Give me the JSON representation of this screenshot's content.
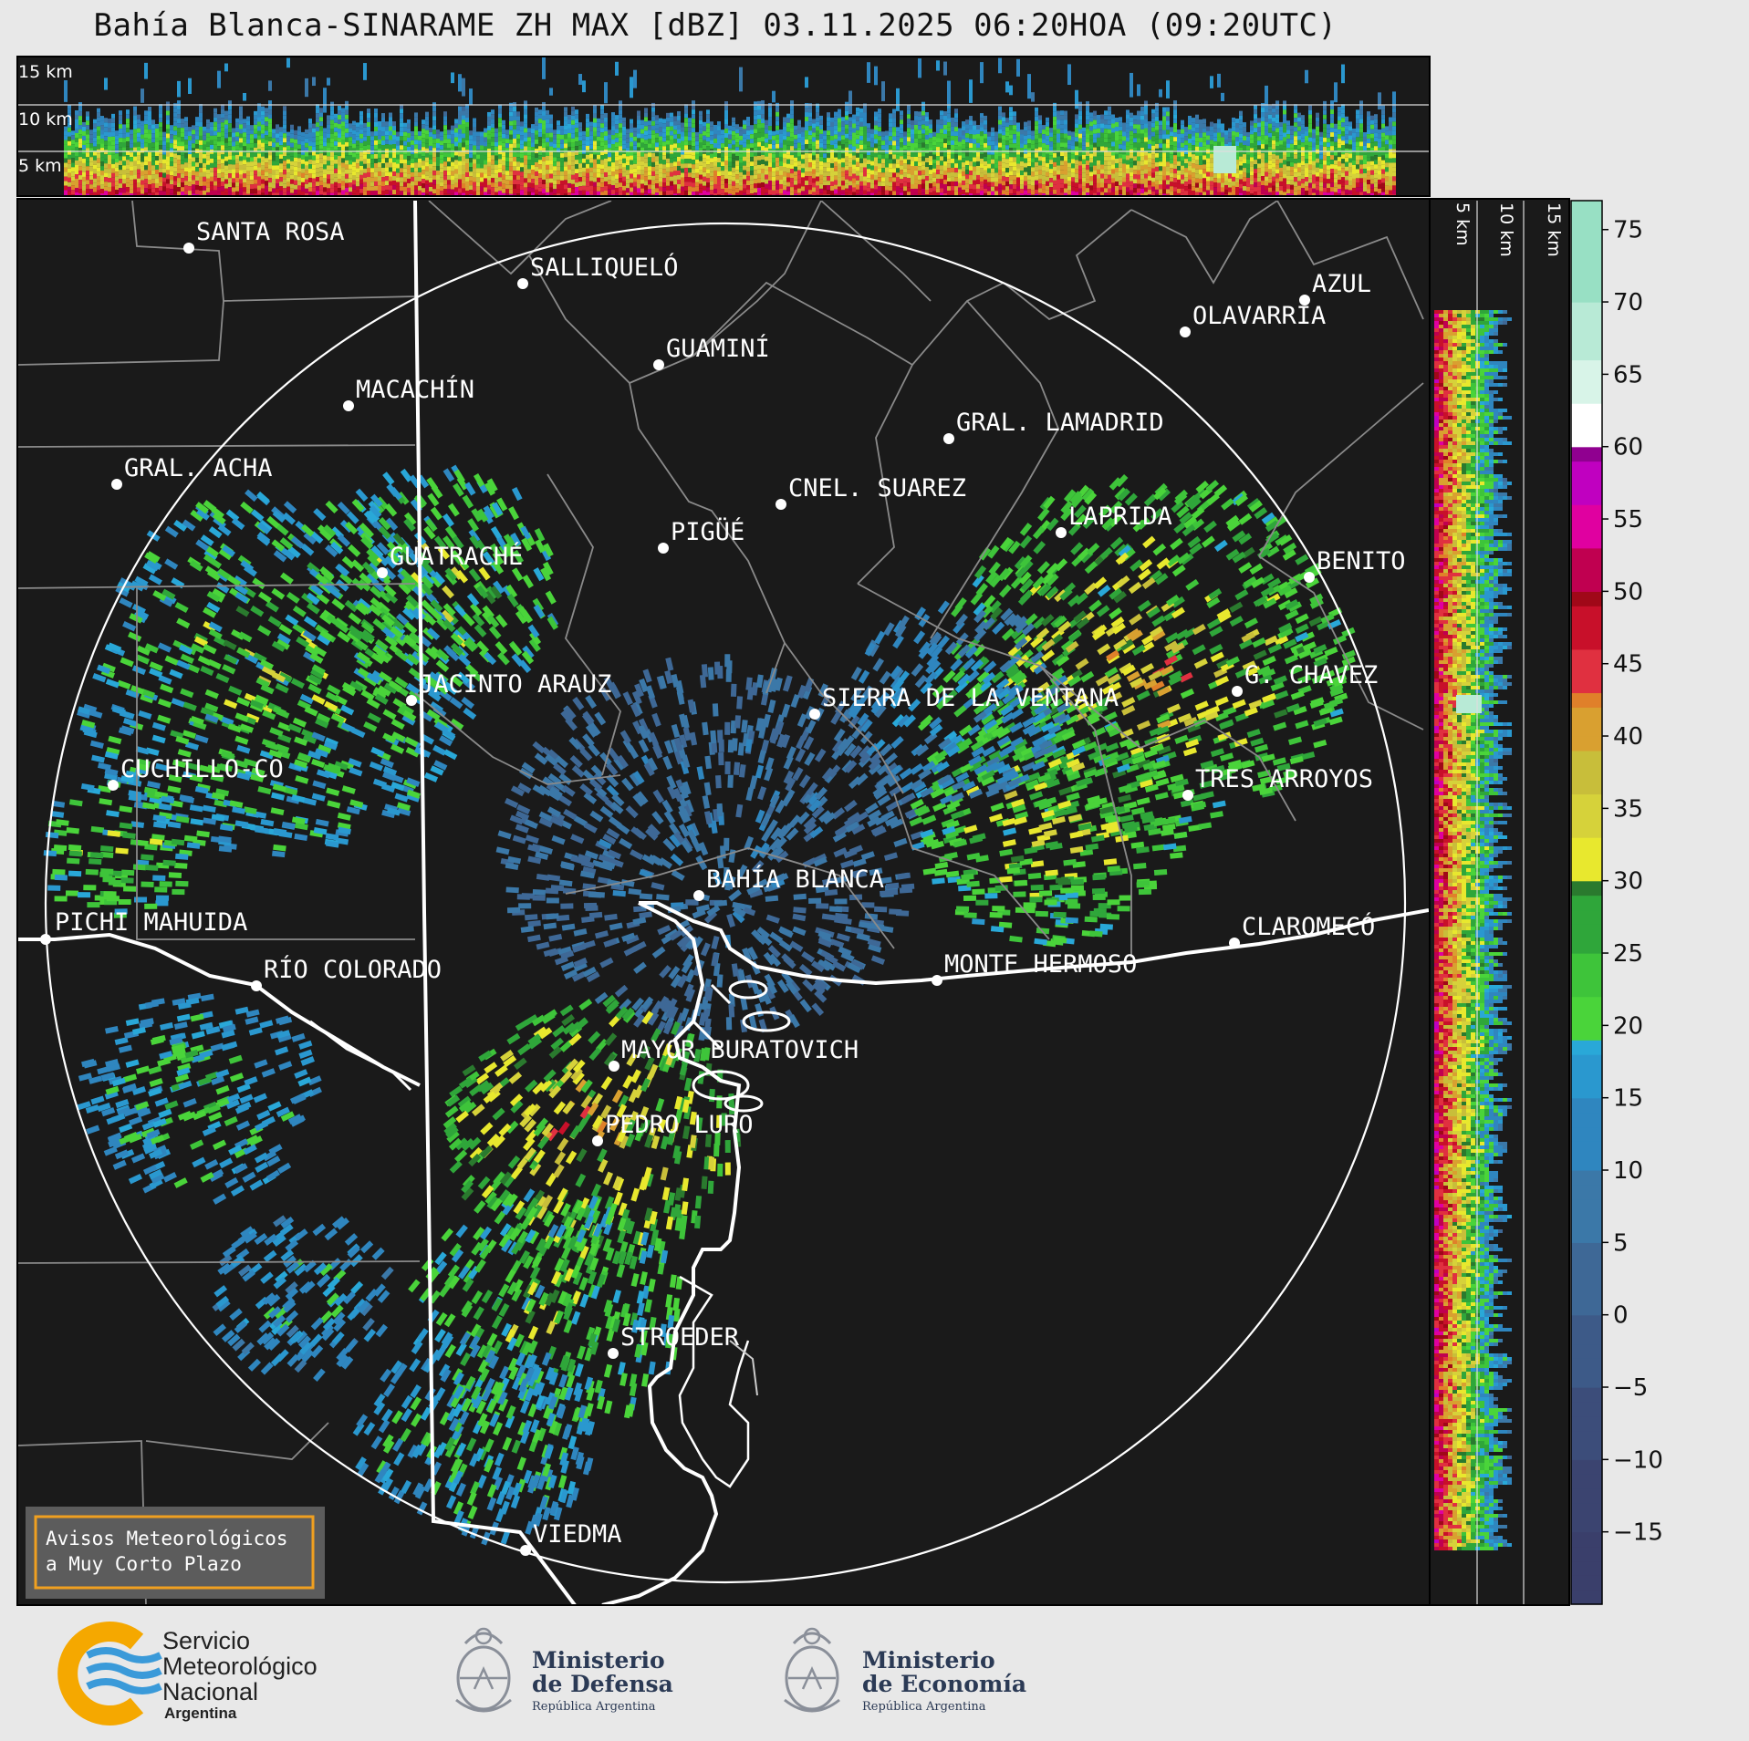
{
  "title": "Bahía Blanca-SINARAME ZH MAX [dBZ] 03.11.2025 06:20HOA (09:20UTC)",
  "top_panel": {
    "height_labels": [
      "15 km",
      "10 km",
      "5 km"
    ]
  },
  "side_panel": {
    "height_labels": [
      "5 km",
      "10 km",
      "15 km"
    ]
  },
  "colorbar": {
    "ticks": [
      "75",
      "70",
      "65",
      "60",
      "55",
      "50",
      "45",
      "40",
      "35",
      "30",
      "25",
      "20",
      "15",
      "10",
      "5",
      "0",
      "−5",
      "−10",
      "−15"
    ],
    "tick_values": [
      75,
      70,
      65,
      60,
      55,
      50,
      45,
      40,
      35,
      30,
      25,
      20,
      15,
      10,
      5,
      0,
      -5,
      -10,
      -15
    ],
    "range": [
      -20,
      77
    ]
  },
  "cities": [
    {
      "name": "SANTA ROSA"
    },
    {
      "name": "SALLIQUELÓ"
    },
    {
      "name": "AZUL"
    },
    {
      "name": "OLAVARRÍA"
    },
    {
      "name": "GUAMINÍ"
    },
    {
      "name": "MACACHÍN"
    },
    {
      "name": "GRAL. LAMADRID"
    },
    {
      "name": "GRAL. ACHA"
    },
    {
      "name": "CNEL. SUAREZ"
    },
    {
      "name": "LAPRIDA"
    },
    {
      "name": "PIGÜÉ"
    },
    {
      "name": "GUATRACHÉ"
    },
    {
      "name": "BENITO"
    },
    {
      "name": "JACINTO ARAUZ"
    },
    {
      "name": "SIERRA DE LA VENTANA"
    },
    {
      "name": "G. CHAVEZ"
    },
    {
      "name": "CUCHILLO-CO"
    },
    {
      "name": "TRES ARROYOS"
    },
    {
      "name": "BAHÍA BLANCA"
    },
    {
      "name": "PICHI MAHUIDA"
    },
    {
      "name": "CLAROMECÓ"
    },
    {
      "name": "MONTE HERMOSO"
    },
    {
      "name": "RÍO COLORADO"
    },
    {
      "name": "MAYOR BURATOVICH"
    },
    {
      "name": "PEDRO LURO"
    },
    {
      "name": "STROEDER"
    },
    {
      "name": "VIEDMA"
    }
  ],
  "notice": {
    "line1": "Avisos Meteorológicos",
    "line2": "a Muy Corto Plazo"
  },
  "logos": {
    "smn": {
      "line1": "Servicio",
      "line2": "Meteorológico",
      "line3": "Nacional",
      "line4": "Argentina"
    },
    "defensa": {
      "line1": "Ministerio",
      "line2": "de Defensa",
      "line3": "República Argentina"
    },
    "economia": {
      "line1": "Ministerio",
      "line2": "de Economía",
      "line3": "República Argentina"
    }
  },
  "colors": {
    "background": "#1a1a1a",
    "page": "#e8e8e8",
    "notice_border": "#f0a020",
    "smn_orange": "#f5a800",
    "smn_blue": "#3a9ad9"
  }
}
